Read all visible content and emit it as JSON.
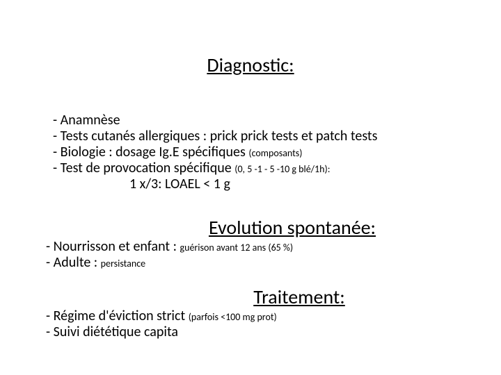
{
  "colors": {
    "text": "#000000",
    "background": "#ffffff"
  },
  "typography": {
    "heading_fontsize": 28,
    "body_fontsize": 20,
    "small_fontsize": 14,
    "font_family": "Calibri"
  },
  "sections": {
    "diagnostic": {
      "title": "Diagnostic:",
      "items": [
        {
          "prefix": "-  ",
          "main": "Anamnèse",
          "small": ""
        },
        {
          "prefix": "- ",
          "main": "Tests cutanés allergiques : prick prick tests et patch tests",
          "small": ""
        },
        {
          "prefix": "- ",
          "main": "Biologie : dosage Ig.E spécifiques ",
          "small": "(composants)"
        },
        {
          "prefix": "- ",
          "main": "Test de provocation spécifique ",
          "small": "(0, 5 -1 - 5 -10 g blé/1h):"
        },
        {
          "indent": true,
          "main": "1 x/3: LOAEL < 1 g",
          "small": ""
        }
      ]
    },
    "evolution": {
      "title": "Evolution spontanée:",
      "items": [
        {
          "prefix": "-  ",
          "main": "Nourrisson et enfant : ",
          "small": "guérison avant 12 ans (65 %)"
        },
        {
          "prefix": "-  ",
          "main": "Adulte : ",
          "small": "persistance"
        }
      ]
    },
    "traitement": {
      "title": "Traitement:",
      "items": [
        {
          "prefix": "-  ",
          "main": "Régime d'éviction strict ",
          "small": "(parfois <100 mg prot)"
        },
        {
          "prefix": "-  ",
          "main": "Suivi diététique capita",
          "small": ""
        }
      ]
    }
  }
}
